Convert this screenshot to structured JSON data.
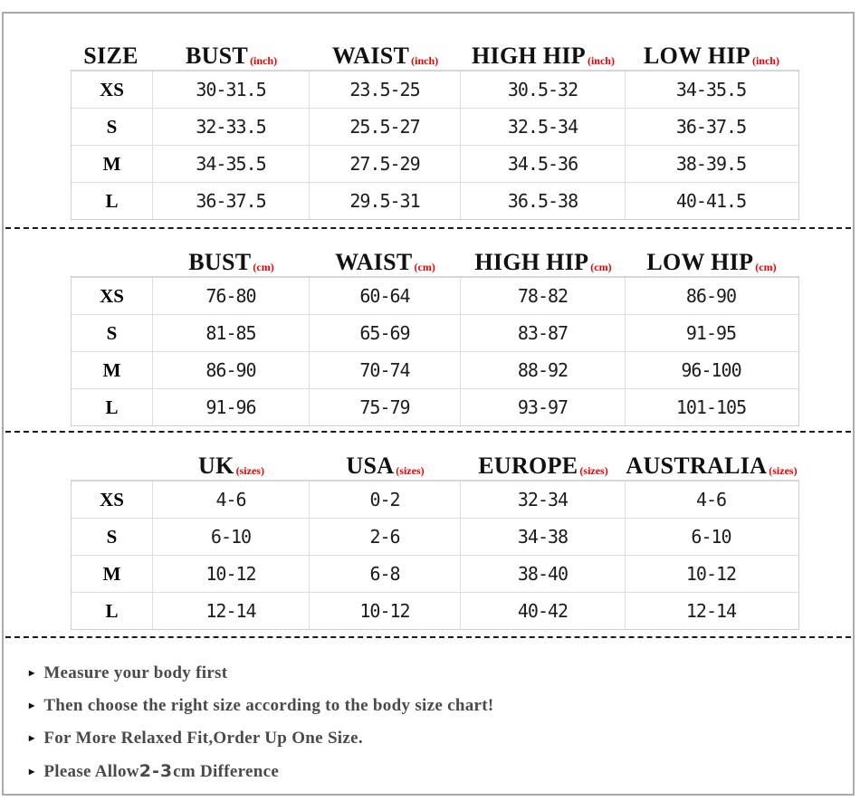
{
  "colors": {
    "accent_red": "#ee0000",
    "frame_border": "#ababab",
    "table_border": "#dedede",
    "note_text": "#4a4a4a",
    "header_text": "#111111"
  },
  "icons": {
    "triangle_bullet": "▸"
  },
  "tables": [
    {
      "id": "inches",
      "headers": [
        {
          "label": "SIZE",
          "unit": ""
        },
        {
          "label": "BUST",
          "unit": "(inch)"
        },
        {
          "label": "WAIST",
          "unit": "(inch)"
        },
        {
          "label": "HIGH HIP",
          "unit": "(inch)"
        },
        {
          "label": "LOW HIP",
          "unit": "(inch)"
        }
      ],
      "rows": [
        {
          "size": "XS",
          "values": [
            "30-31.5",
            "23.5-25",
            "30.5-32",
            "34-35.5"
          ]
        },
        {
          "size": "S",
          "values": [
            "32-33.5",
            "25.5-27",
            "32.5-34",
            "36-37.5"
          ]
        },
        {
          "size": "M",
          "values": [
            "34-35.5",
            "27.5-29",
            "34.5-36",
            "38-39.5"
          ]
        },
        {
          "size": "L",
          "values": [
            "36-37.5",
            "29.5-31",
            "36.5-38",
            "40-41.5"
          ]
        }
      ]
    },
    {
      "id": "centimeters",
      "headers": [
        {
          "label": "",
          "unit": ""
        },
        {
          "label": "BUST",
          "unit": "(cm)"
        },
        {
          "label": "WAIST",
          "unit": "(cm)"
        },
        {
          "label": "HIGH HIP",
          "unit": "(cm)"
        },
        {
          "label": "LOW HIP",
          "unit": "(cm)"
        }
      ],
      "rows": [
        {
          "size": "XS",
          "values": [
            "76-80",
            "60-64",
            "78-82",
            "86-90"
          ]
        },
        {
          "size": "S",
          "values": [
            "81-85",
            "65-69",
            "83-87",
            "91-95"
          ]
        },
        {
          "size": "M",
          "values": [
            "86-90",
            "70-74",
            "88-92",
            "96-100"
          ]
        },
        {
          "size": "L",
          "values": [
            "91-96",
            "75-79",
            "93-97",
            "101-105"
          ]
        }
      ]
    },
    {
      "id": "international-sizes",
      "headers": [
        {
          "label": "",
          "unit": ""
        },
        {
          "label": "UK",
          "unit": "(sizes)"
        },
        {
          "label": "USA",
          "unit": "(sizes)"
        },
        {
          "label": "EUROPE",
          "unit": "(sizes)"
        },
        {
          "label": "AUSTRALIA",
          "unit": "(sizes)"
        }
      ],
      "rows": [
        {
          "size": "XS",
          "values": [
            "4-6",
            "0-2",
            "32-34",
            "4-6"
          ]
        },
        {
          "size": "S",
          "values": [
            "6-10",
            "2-6",
            "34-38",
            "6-10"
          ]
        },
        {
          "size": "M",
          "values": [
            "10-12",
            "6-8",
            "38-40",
            "10-12"
          ]
        },
        {
          "size": "L",
          "values": [
            "12-14",
            "10-12",
            "40-42",
            "12-14"
          ]
        }
      ]
    }
  ],
  "notes": [
    {
      "prefix": "Measure your body first",
      "highlight": "",
      "suffix": ""
    },
    {
      "prefix": "Then choose the right size according to the body size chart!",
      "highlight": "",
      "suffix": ""
    },
    {
      "prefix": "For More Relaxed Fit,Order Up One Size.",
      "highlight": "",
      "suffix": ""
    },
    {
      "prefix": "Please Allow ",
      "highlight": "2-3",
      "suffix": "cm Difference"
    }
  ]
}
